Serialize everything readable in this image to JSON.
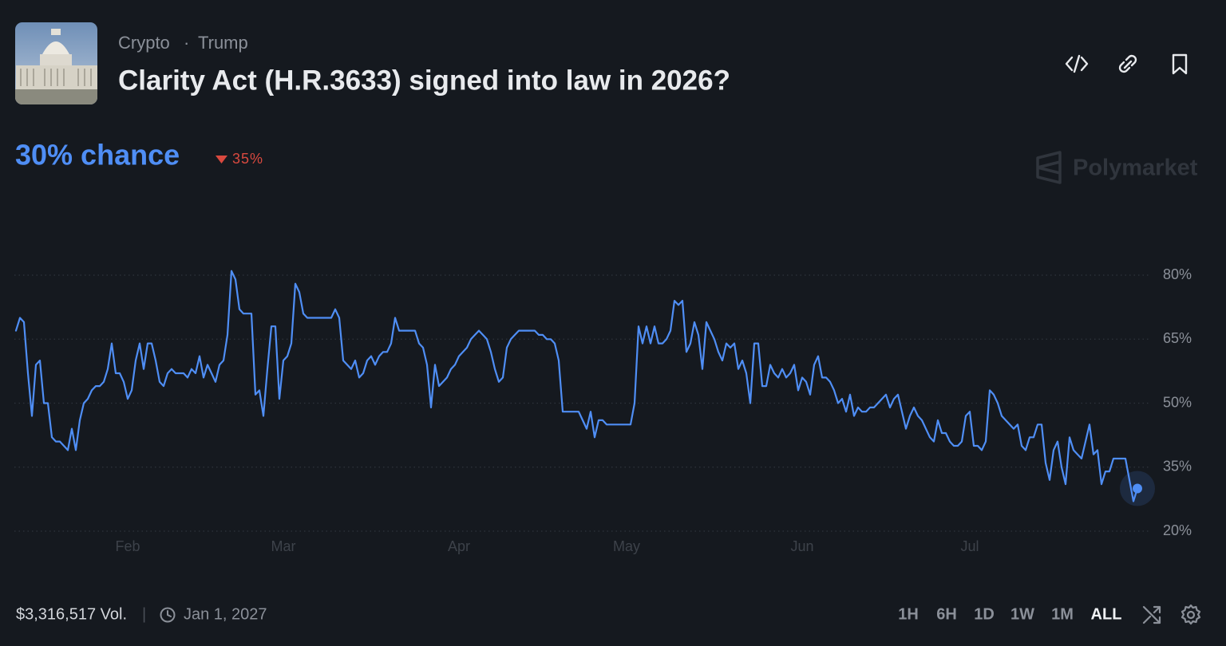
{
  "header": {
    "tags": [
      "Crypto",
      "Trump"
    ],
    "title": "Clarity Act (H.R.3633) signed into law in 2026?"
  },
  "headline": "30% chance",
  "change": "35%",
  "watermark": "Polymarket",
  "chart_data": {
    "type": "line",
    "categories": [
      null,
      null,
      null,
      null,
      null,
      null,
      null,
      null,
      null,
      null,
      null,
      null,
      null,
      null,
      null,
      null,
      null,
      null,
      null,
      null,
      null,
      null,
      null,
      null,
      null,
      null,
      null,
      null,
      "Feb",
      null,
      null,
      null,
      null,
      null,
      null,
      null,
      null,
      null,
      null,
      null,
      null,
      null,
      null,
      null,
      null,
      null,
      null,
      null,
      null,
      null,
      null,
      null,
      null,
      null,
      null,
      null,
      null,
      null,
      null,
      null,
      null,
      null,
      null,
      null,
      null,
      null,
      null,
      "Mar",
      null,
      null,
      null,
      null,
      null,
      null,
      null,
      null,
      null,
      null,
      null,
      null,
      null,
      null,
      null,
      null,
      null,
      null,
      null,
      null,
      null,
      null,
      null,
      null,
      null,
      null,
      null,
      null,
      null,
      null,
      null,
      null,
      null,
      null,
      null,
      null,
      null,
      null,
      null,
      null,
      null,
      null,
      null,
      "Apr",
      null,
      null,
      null,
      null,
      null,
      null,
      null,
      null,
      null,
      null,
      null,
      null,
      null,
      null,
      null,
      null,
      null,
      null,
      null,
      null,
      null,
      null,
      null,
      null,
      null,
      null,
      null,
      null,
      null,
      null,
      null,
      null,
      null,
      null,
      null,
      null,
      null,
      null,
      null,
      null,
      null,
      "May",
      null,
      null,
      null,
      null,
      null,
      null,
      null,
      null,
      null,
      null,
      null,
      null,
      null,
      null,
      null,
      null,
      null,
      null,
      null,
      null,
      null,
      null,
      null,
      null,
      null,
      null,
      null,
      null,
      null,
      null,
      null,
      null,
      null,
      null,
      null,
      null,
      null,
      null,
      null,
      null,
      null,
      null,
      null,
      "Jun",
      null,
      null,
      null,
      null,
      null,
      null,
      null,
      null,
      null,
      null,
      null,
      null,
      null,
      null,
      null,
      null,
      null,
      null,
      null,
      null,
      null,
      null,
      null,
      null,
      null,
      null,
      null,
      null,
      null,
      null,
      null,
      null,
      null,
      null,
      null,
      null,
      null,
      null,
      null,
      null,
      null,
      "Jul",
      null,
      null,
      null,
      null,
      null,
      null,
      null,
      null,
      null,
      null,
      null,
      null,
      null,
      null,
      null,
      null,
      null,
      null,
      null,
      null,
      null,
      null,
      null,
      null,
      null,
      null,
      null,
      null,
      null,
      null,
      null,
      null,
      null,
      null,
      null,
      null,
      null,
      null,
      null,
      null,
      null,
      null
    ],
    "series": [
      {
        "color": "#4f8ef5",
        "values": [
          67,
          70,
          69,
          57,
          47,
          59,
          60,
          50,
          50,
          42,
          41,
          41,
          40,
          39,
          44,
          39,
          46,
          50,
          51,
          53,
          54,
          54,
          55,
          58,
          64,
          57,
          57,
          55,
          51,
          53,
          60,
          64,
          58,
          64,
          64,
          60,
          55,
          54,
          57,
          58,
          57,
          57,
          57,
          56,
          58,
          57,
          61,
          56,
          59,
          57,
          55,
          59,
          60,
          66,
          81,
          79,
          72,
          71,
          71,
          71,
          52,
          53,
          47,
          58,
          68,
          68,
          51,
          60,
          61,
          64,
          78,
          76,
          71,
          70,
          70,
          70,
          70,
          70,
          70,
          70,
          72,
          70,
          60,
          59,
          58,
          60,
          56,
          57,
          60,
          61,
          59,
          61,
          62,
          62,
          64,
          70,
          67,
          67,
          67,
          67,
          67,
          64,
          63,
          59,
          49,
          59,
          54,
          55,
          56,
          58,
          59,
          61,
          62,
          63,
          65,
          66,
          67,
          66,
          65,
          62,
          58,
          55,
          56,
          63,
          65,
          66,
          67,
          67,
          67,
          67,
          67,
          66,
          66,
          65,
          65,
          64,
          60,
          48,
          48,
          48,
          48,
          48,
          46,
          44,
          48,
          42,
          46,
          46,
          45,
          45,
          45,
          45,
          45,
          45,
          45,
          50,
          68,
          64,
          68,
          64,
          68,
          64,
          64,
          65,
          67,
          74,
          73,
          74,
          62,
          64,
          69,
          66,
          58,
          69,
          67,
          65,
          62,
          60,
          64,
          63,
          64,
          58,
          60,
          57,
          50,
          64,
          64,
          54,
          54,
          59,
          57,
          56,
          58,
          56,
          57,
          59,
          53,
          56,
          55,
          52,
          59,
          61,
          56,
          56,
          55,
          53,
          50,
          51,
          48,
          52,
          47,
          49,
          48,
          48,
          49,
          49,
          50,
          51,
          52,
          49,
          51,
          52,
          48,
          44,
          47,
          49,
          47,
          46,
          44,
          42,
          41,
          46,
          43,
          43,
          41,
          40,
          40,
          41,
          47,
          48,
          40,
          40,
          39,
          41,
          53,
          52,
          50,
          47,
          46,
          45,
          44,
          45,
          40,
          39,
          42,
          42,
          45,
          45,
          36,
          32,
          39,
          41,
          35,
          31,
          42,
          39,
          38,
          37,
          41,
          45,
          38,
          39,
          31,
          34,
          34,
          37,
          37,
          37,
          37,
          32,
          27,
          30
        ]
      }
    ],
    "ylim": [
      20,
      80
    ],
    "yticks": [
      {
        "value": 20,
        "label": "20%"
      },
      {
        "value": 35,
        "label": "35%"
      },
      {
        "value": 50,
        "label": "50%"
      },
      {
        "value": 65,
        "label": "65%"
      },
      {
        "value": 80,
        "label": "80%"
      }
    ],
    "grid": true
  },
  "footer": {
    "volume": "$3,316,517 Vol.",
    "end_date": "Jan 1, 2027",
    "ranges": [
      "1H",
      "6H",
      "1D",
      "1W",
      "1M",
      "ALL"
    ]
  }
}
